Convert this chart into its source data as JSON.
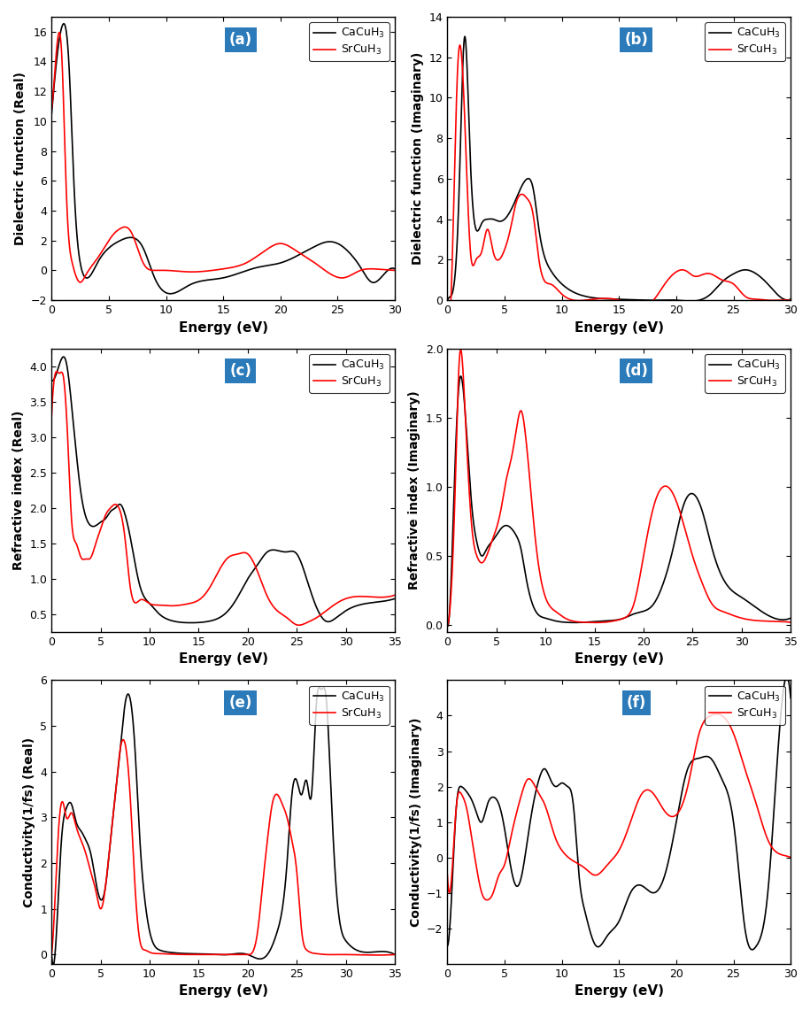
{
  "panels": [
    {
      "label": "(a)",
      "ylabel": "Dielectric function (Real)",
      "xlabel": "Energy (eV)",
      "xlim": [
        0,
        30
      ],
      "ylim": [
        -2,
        17
      ],
      "yticks": [
        -2,
        0,
        2,
        4,
        6,
        8,
        10,
        12,
        14,
        16
      ],
      "xticks": [
        0,
        5,
        10,
        15,
        20,
        25,
        30
      ]
    },
    {
      "label": "(b)",
      "ylabel": "Dielectric function (Imaginary)",
      "xlabel": "Energy (eV)",
      "xlim": [
        0,
        30
      ],
      "ylim": [
        0,
        14
      ],
      "yticks": [
        0,
        2,
        4,
        6,
        8,
        10,
        12,
        14
      ],
      "xticks": [
        0,
        5,
        10,
        15,
        20,
        25,
        30
      ]
    },
    {
      "label": "(c)",
      "ylabel": "Refractive index (Real)",
      "xlabel": "Energy (eV)",
      "xlim": [
        0,
        35
      ],
      "ylim": [
        0.25,
        4.25
      ],
      "yticks": [
        0.5,
        1.0,
        1.5,
        2.0,
        2.5,
        3.0,
        3.5,
        4.0
      ],
      "xticks": [
        0,
        5,
        10,
        15,
        20,
        25,
        30,
        35
      ]
    },
    {
      "label": "(d)",
      "ylabel": "Refractive index (Imaginary)",
      "xlabel": "Energy (eV)",
      "xlim": [
        0,
        35
      ],
      "ylim": [
        -0.05,
        2.0
      ],
      "yticks": [
        0.0,
        0.5,
        1.0,
        1.5,
        2.0
      ],
      "xticks": [
        0,
        5,
        10,
        15,
        20,
        25,
        30,
        35
      ]
    },
    {
      "label": "(e)",
      "ylabel": "Conductivity(1/fs) (Real)",
      "xlabel": "Energy (eV)",
      "xlim": [
        0,
        35
      ],
      "ylim": [
        -0.2,
        6.0
      ],
      "yticks": [
        0,
        1,
        2,
        3,
        4,
        5,
        6
      ],
      "xticks": [
        0,
        5,
        10,
        15,
        20,
        25,
        30,
        35
      ]
    },
    {
      "label": "(f)",
      "ylabel": "Conductivity(1/fs) (Imaginary)",
      "xlabel": "Energy (eV)",
      "xlim": [
        0,
        30
      ],
      "ylim": [
        -3,
        5
      ],
      "yticks": [
        -2,
        -1,
        0,
        1,
        2,
        3,
        4
      ],
      "xticks": [
        0,
        5,
        10,
        15,
        20,
        25,
        30
      ]
    }
  ],
  "legend_labels": [
    "CaCuH$_3$",
    "SrCuH$_3$"
  ],
  "colors": [
    "black",
    "red"
  ],
  "label_box_color": "#2b7bba",
  "label_text_color": "white",
  "a_ca_x": [
    0,
    0.5,
    1.0,
    1.5,
    2.0,
    2.5,
    3.0,
    4.0,
    5.0,
    6.0,
    7.0,
    8.0,
    9.0,
    10.0,
    12.0,
    15.0,
    18.0,
    20.0,
    21.0,
    22.0,
    23.0,
    24.0,
    25.0,
    26.0,
    27.0,
    28.0,
    29.0,
    30.0
  ],
  "a_ca_y": [
    10.5,
    14.5,
    16.5,
    14.0,
    5.0,
    0.5,
    -0.5,
    0.5,
    1.5,
    2.0,
    2.2,
    1.5,
    -0.5,
    -1.5,
    -1.0,
    -0.5,
    0.2,
    0.5,
    0.8,
    1.2,
    1.6,
    1.9,
    1.8,
    1.2,
    0.2,
    -0.8,
    -0.3,
    0.1
  ],
  "a_sr_x": [
    0,
    0.4,
    0.9,
    1.3,
    1.8,
    2.5,
    3.0,
    4.0,
    5.0,
    5.5,
    6.0,
    6.5,
    7.0,
    8.0,
    9.0,
    10.0,
    12.0,
    15.0,
    17.0,
    19.0,
    20.0,
    21.0,
    22.0,
    23.0,
    24.5,
    25.5,
    27.0,
    28.0,
    29.0,
    30.0
  ],
  "a_sr_y": [
    10.8,
    14.5,
    14.2,
    5.0,
    0.5,
    -0.8,
    -0.3,
    0.8,
    2.0,
    2.5,
    2.8,
    2.9,
    2.5,
    0.5,
    0.0,
    0.0,
    -0.1,
    0.1,
    0.5,
    1.5,
    1.8,
    1.5,
    1.0,
    0.5,
    -0.3,
    -0.5,
    0.0,
    0.1,
    0.05,
    0.0
  ],
  "b_ca_x": [
    0,
    0.5,
    1.0,
    1.5,
    2.0,
    2.5,
    3.0,
    3.5,
    4.0,
    4.5,
    5.0,
    6.0,
    7.0,
    7.5,
    8.0,
    9.0,
    10.0,
    12.0,
    15.0,
    18.0,
    20.0,
    22.0,
    23.0,
    24.0,
    25.0,
    26.0,
    27.0,
    28.0,
    29.0,
    30.0
  ],
  "b_ca_y": [
    0,
    0.5,
    5.0,
    13.0,
    7.0,
    3.5,
    3.8,
    4.0,
    4.0,
    3.9,
    4.0,
    5.0,
    6.0,
    5.5,
    3.5,
    1.5,
    0.8,
    0.2,
    0.05,
    0.0,
    0.0,
    0.0,
    0.3,
    0.9,
    1.3,
    1.5,
    1.3,
    0.8,
    0.2,
    0.05
  ],
  "b_sr_x": [
    0,
    0.4,
    0.9,
    1.4,
    2.0,
    2.5,
    3.0,
    3.5,
    4.0,
    4.5,
    5.0,
    5.5,
    6.0,
    7.0,
    7.5,
    8.0,
    9.0,
    10.0,
    12.0,
    15.0,
    18.0,
    19.0,
    20.0,
    20.5,
    21.0,
    21.5,
    22.0,
    22.5,
    23.0,
    24.0,
    25.0,
    26.0,
    27.0,
    28.0,
    29.0,
    30.0
  ],
  "b_sr_y": [
    0,
    1.5,
    11.5,
    10.5,
    2.5,
    2.0,
    2.4,
    3.5,
    2.4,
    2.0,
    2.5,
    3.5,
    4.8,
    5.0,
    4.2,
    2.0,
    0.8,
    0.3,
    0.0,
    0.0,
    0.0,
    0.8,
    1.4,
    1.5,
    1.4,
    1.2,
    1.2,
    1.3,
    1.3,
    1.0,
    0.8,
    0.2,
    0.05,
    0.0,
    0.0,
    0.0
  ],
  "c_ca_x": [
    0,
    0.5,
    1.0,
    1.5,
    2.0,
    3.0,
    4.0,
    4.5,
    5.0,
    5.5,
    6.0,
    6.5,
    7.0,
    7.5,
    8.0,
    9.0,
    10.0,
    11.0,
    12.0,
    14.0,
    16.0,
    18.0,
    19.0,
    20.0,
    21.0,
    22.0,
    23.0,
    24.0,
    25.0,
    26.0,
    27.0,
    28.0,
    29.0,
    30.0,
    32.0,
    35.0
  ],
  "c_ca_y": [
    3.8,
    3.9,
    4.1,
    4.05,
    3.5,
    2.2,
    1.75,
    1.75,
    1.8,
    1.85,
    1.95,
    2.0,
    2.05,
    1.9,
    1.6,
    0.9,
    0.65,
    0.5,
    0.42,
    0.38,
    0.4,
    0.55,
    0.75,
    1.0,
    1.2,
    1.38,
    1.4,
    1.38,
    1.35,
    1.0,
    0.6,
    0.4,
    0.45,
    0.55,
    0.65,
    0.72
  ],
  "c_sr_x": [
    0,
    0.3,
    0.8,
    1.2,
    1.7,
    2.0,
    2.5,
    3.0,
    3.5,
    4.0,
    4.5,
    5.0,
    5.5,
    6.0,
    6.5,
    7.0,
    7.5,
    8.0,
    9.0,
    10.0,
    11.0,
    12.0,
    14.0,
    15.0,
    16.0,
    17.0,
    18.0,
    19.0,
    20.0,
    21.0,
    22.0,
    23.0,
    24.0,
    25.0,
    26.0,
    27.0,
    28.0,
    29.0,
    30.0,
    32.0,
    35.0
  ],
  "c_sr_y": [
    3.3,
    3.85,
    3.9,
    3.85,
    2.8,
    1.9,
    1.5,
    1.3,
    1.28,
    1.3,
    1.5,
    1.7,
    1.9,
    2.0,
    2.05,
    1.95,
    1.55,
    0.9,
    0.7,
    0.65,
    0.63,
    0.62,
    0.65,
    0.7,
    0.85,
    1.1,
    1.3,
    1.35,
    1.35,
    1.1,
    0.75,
    0.55,
    0.45,
    0.35,
    0.38,
    0.45,
    0.55,
    0.65,
    0.72,
    0.75,
    0.77
  ],
  "d_ca_x": [
    0,
    0.3,
    0.8,
    1.2,
    1.8,
    2.5,
    3.0,
    3.5,
    4.0,
    4.5,
    5.0,
    5.5,
    6.0,
    6.5,
    7.0,
    7.5,
    8.0,
    9.0,
    10.0,
    11.0,
    12.0,
    14.0,
    16.0,
    18.0,
    19.0,
    20.0,
    21.0,
    22.0,
    23.0,
    24.0,
    25.0,
    26.0,
    27.0,
    28.0,
    29.0,
    30.0,
    32.0,
    35.0
  ],
  "d_ca_y": [
    0,
    0.2,
    1.2,
    1.75,
    1.55,
    0.85,
    0.6,
    0.5,
    0.55,
    0.6,
    0.65,
    0.7,
    0.72,
    0.7,
    0.65,
    0.55,
    0.35,
    0.1,
    0.05,
    0.03,
    0.02,
    0.02,
    0.03,
    0.05,
    0.08,
    0.1,
    0.15,
    0.3,
    0.55,
    0.85,
    0.95,
    0.82,
    0.55,
    0.35,
    0.25,
    0.2,
    0.1,
    0.05
  ],
  "d_sr_x": [
    0,
    0.3,
    0.8,
    1.2,
    1.8,
    2.5,
    3.0,
    3.5,
    4.0,
    4.5,
    5.0,
    5.5,
    6.0,
    6.5,
    7.0,
    7.5,
    8.0,
    9.0,
    10.0,
    11.0,
    12.0,
    14.0,
    16.0,
    17.0,
    18.0,
    19.0,
    20.0,
    21.0,
    22.0,
    23.0,
    24.0,
    25.0,
    26.0,
    27.0,
    28.0,
    30.0,
    32.0,
    35.0
  ],
  "d_sr_y": [
    0,
    0.15,
    1.0,
    1.9,
    1.55,
    0.7,
    0.5,
    0.45,
    0.5,
    0.6,
    0.7,
    0.85,
    1.05,
    1.2,
    1.4,
    1.55,
    1.35,
    0.6,
    0.2,
    0.1,
    0.05,
    0.02,
    0.02,
    0.03,
    0.05,
    0.15,
    0.5,
    0.85,
    1.0,
    0.95,
    0.75,
    0.5,
    0.3,
    0.15,
    0.1,
    0.05,
    0.03,
    0.02
  ],
  "e_ca_x": [
    0,
    0.5,
    1.0,
    1.5,
    2.0,
    2.5,
    3.0,
    3.5,
    4.0,
    4.5,
    5.0,
    5.5,
    6.0,
    6.5,
    7.0,
    7.5,
    8.0,
    8.5,
    9.0,
    9.5,
    10.0,
    11.0,
    12.0,
    14.0,
    16.0,
    18.0,
    20.0,
    22.0,
    23.0,
    24.0,
    24.5,
    25.0,
    25.5,
    26.0,
    26.5,
    27.0,
    27.5,
    28.0,
    28.5,
    29.0,
    30.0,
    32.0,
    35.0
  ],
  "e_ca_y": [
    0,
    0.5,
    2.5,
    3.2,
    3.3,
    2.9,
    2.7,
    2.5,
    2.2,
    1.6,
    1.2,
    1.5,
    2.5,
    3.5,
    4.5,
    5.5,
    5.6,
    4.5,
    2.5,
    1.2,
    0.5,
    0.1,
    0.05,
    0.02,
    0.01,
    0.0,
    0.0,
    0.0,
    0.5,
    2.0,
    3.5,
    3.8,
    3.5,
    3.8,
    3.5,
    5.5,
    5.8,
    5.6,
    3.5,
    1.5,
    0.3,
    0.05,
    0.0
  ],
  "e_sr_x": [
    0,
    0.3,
    0.8,
    1.2,
    1.5,
    2.0,
    2.5,
    3.0,
    3.5,
    4.0,
    4.5,
    5.0,
    5.5,
    6.0,
    6.5,
    7.0,
    7.5,
    8.0,
    8.5,
    9.0,
    9.5,
    10.0,
    11.0,
    12.0,
    14.0,
    16.0,
    18.0,
    19.0,
    20.0,
    21.0,
    21.5,
    22.0,
    22.5,
    23.0,
    23.5,
    24.0,
    24.5,
    25.0,
    25.5,
    26.0,
    27.0,
    28.0,
    29.0,
    30.0,
    35.0
  ],
  "e_sr_y": [
    0,
    1.0,
    3.0,
    3.3,
    3.0,
    3.1,
    2.8,
    2.5,
    2.2,
    1.8,
    1.4,
    1.0,
    1.5,
    2.5,
    3.5,
    4.5,
    4.6,
    3.5,
    1.5,
    0.3,
    0.1,
    0.05,
    0.02,
    0.01,
    0.0,
    0.0,
    0.0,
    0.0,
    0.0,
    0.5,
    1.5,
    2.5,
    3.3,
    3.5,
    3.3,
    3.0,
    2.5,
    1.8,
    0.5,
    0.1,
    0.02,
    0.0,
    0.0,
    0.0,
    0.0
  ],
  "f_ca_x": [
    0,
    0.3,
    0.8,
    1.2,
    1.8,
    2.0,
    2.5,
    3.0,
    3.5,
    4.0,
    4.5,
    5.0,
    5.5,
    6.0,
    6.5,
    7.0,
    7.5,
    8.0,
    8.5,
    9.0,
    9.5,
    10.0,
    10.5,
    11.0,
    11.5,
    12.0,
    13.0,
    14.0,
    15.0,
    16.0,
    17.0,
    18.0,
    19.0,
    20.0,
    21.0,
    22.0,
    23.0,
    24.0,
    25.0,
    25.5,
    26.0,
    27.0,
    28.0,
    29.0,
    30.0
  ],
  "f_ca_y": [
    -2.5,
    -1.5,
    1.5,
    2.0,
    1.8,
    1.7,
    1.3,
    1.0,
    1.5,
    1.7,
    1.5,
    0.8,
    -0.2,
    -0.8,
    -0.5,
    0.5,
    1.5,
    2.2,
    2.5,
    2.2,
    2.0,
    2.1,
    2.0,
    1.5,
    -0.5,
    -1.5,
    -2.5,
    -2.2,
    -1.8,
    -1.0,
    -0.8,
    -1.0,
    -0.5,
    1.0,
    2.5,
    2.8,
    2.8,
    2.2,
    1.0,
    -0.5,
    -2.0,
    -2.5,
    -1.0,
    3.5,
    4.5
  ],
  "f_sr_x": [
    0,
    0.3,
    0.8,
    1.2,
    1.8,
    2.0,
    2.5,
    3.0,
    3.5,
    4.0,
    4.5,
    5.0,
    5.5,
    6.0,
    6.5,
    7.0,
    7.5,
    8.0,
    8.5,
    9.0,
    9.5,
    10.0,
    11.0,
    12.0,
    13.0,
    14.0,
    15.0,
    16.0,
    17.0,
    18.0,
    19.0,
    20.0,
    21.0,
    22.0,
    23.0,
    24.0,
    25.0,
    26.0,
    27.0,
    28.0,
    29.0,
    30.0
  ],
  "f_sr_y": [
    -0.5,
    -0.8,
    1.5,
    1.8,
    1.2,
    0.8,
    -0.2,
    -1.0,
    -1.2,
    -1.0,
    -0.5,
    -0.2,
    0.5,
    1.2,
    1.8,
    2.2,
    2.1,
    1.8,
    1.5,
    1.0,
    0.5,
    0.2,
    -0.1,
    -0.3,
    -0.5,
    -0.2,
    0.2,
    1.0,
    1.8,
    1.8,
    1.3,
    1.2,
    2.0,
    3.5,
    4.0,
    4.0,
    3.5,
    2.5,
    1.5,
    0.5,
    0.1,
    0.0
  ]
}
